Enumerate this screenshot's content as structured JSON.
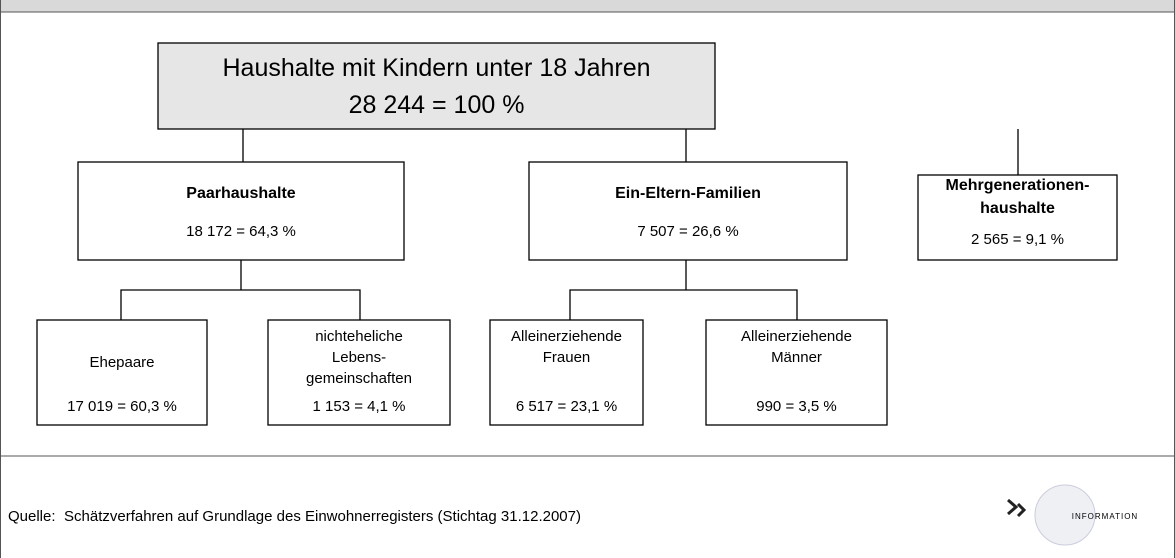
{
  "nodes": [
    {
      "label": [
        "Haushalte mit Kindern unter 18 Jahren"
      ],
      "value": "28 244 = 100 %"
    },
    {
      "label": [
        "Paarhaushalte"
      ],
      "value": "18 172 = 64,3 %"
    },
    {
      "label": [
        "Ein-Eltern-Familien"
      ],
      "value": "7 507 = 26,6 %"
    },
    {
      "label": [
        "Mehrgenerationen-",
        "haushalte"
      ],
      "value": "2 565 = 9,1 %"
    },
    {
      "label": [
        "Ehepaare"
      ],
      "value": "17 019 = 60,3 %"
    },
    {
      "label": [
        "nichteheliche",
        "Lebens-",
        "gemeinschaften"
      ],
      "value": "1 153 = 4,1 %"
    },
    {
      "label": [
        "Alleinerziehende",
        "Frauen"
      ],
      "value": "6 517 = 23,1 %"
    },
    {
      "label": [
        "Alleinerziehende",
        "Männer"
      ],
      "value": "990 = 3,5 %"
    }
  ],
  "footer": {
    "source_label": "Quelle:",
    "source": "Schätzverfahren auf Grundlage des Einwohnerregisters (Stichtag 31.12.2007)",
    "logo": "INFORMATION"
  }
}
